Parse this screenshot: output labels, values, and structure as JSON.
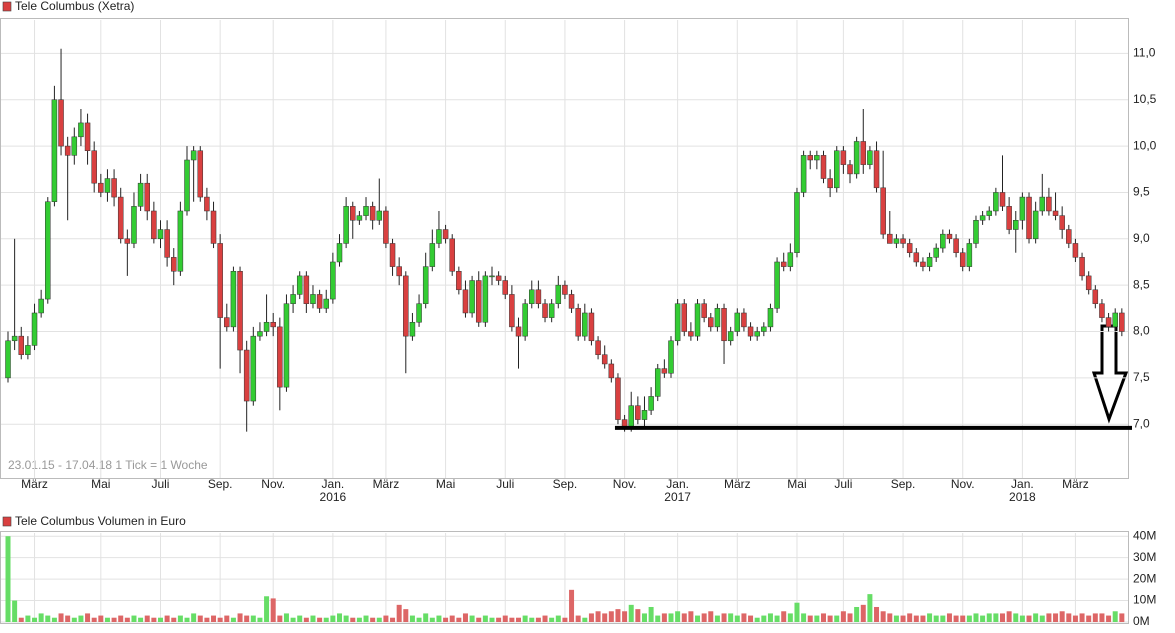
{
  "chart_data": {
    "type": "candlestick",
    "title": "Tele Columbus (Xetra)",
    "title_color": "#d94040",
    "note": "23.01.15 - 17.04.18   1 Tick = 1 Woche",
    "categories": [
      null,
      null,
      null,
      null,
      "März",
      null,
      null,
      null,
      null,
      null,
      null,
      null,
      null,
      null,
      "Mai",
      null,
      null,
      null,
      null,
      null,
      null,
      null,
      null,
      "Juli",
      null,
      null,
      null,
      null,
      null,
      null,
      null,
      null,
      "Sep.",
      null,
      null,
      null,
      null,
      null,
      null,
      null,
      "Nov.",
      null,
      null,
      null,
      null,
      null,
      null,
      null,
      null,
      "Jan.",
      null,
      null,
      null,
      null,
      null,
      null,
      null,
      "März",
      null,
      null,
      null,
      null,
      null,
      null,
      null,
      null,
      "Mai",
      null,
      null,
      null,
      null,
      null,
      null,
      null,
      null,
      "Juli",
      null,
      null,
      null,
      null,
      null,
      null,
      null,
      null,
      "Sep.",
      null,
      null,
      null,
      null,
      null,
      null,
      null,
      null,
      "Nov.",
      null,
      null,
      null,
      null,
      null,
      null,
      null,
      "Jan.",
      null,
      null,
      null,
      null,
      null,
      null,
      null,
      null,
      "März",
      null,
      null,
      null,
      null,
      null,
      null,
      null,
      null,
      "Mai",
      null,
      null,
      null,
      null,
      null,
      null,
      "Juli",
      null,
      null,
      null,
      null,
      null,
      null,
      null,
      null,
      "Sep.",
      null,
      null,
      null,
      null,
      null,
      null,
      null,
      null,
      "Nov.",
      null,
      null,
      null,
      null,
      null,
      null,
      null,
      null,
      "Jan.",
      null,
      null,
      null,
      null,
      null,
      null,
      null,
      "März",
      null,
      null,
      null,
      null,
      null,
      null,
      null
    ],
    "category_years": [
      null,
      null,
      null,
      null,
      null,
      null,
      null,
      null,
      null,
      null,
      null,
      null,
      null,
      null,
      null,
      null,
      null,
      null,
      null,
      null,
      null,
      null,
      null,
      null,
      null,
      null,
      null,
      null,
      null,
      null,
      null,
      null,
      null,
      null,
      null,
      null,
      null,
      null,
      null,
      null,
      null,
      null,
      null,
      null,
      null,
      null,
      null,
      null,
      null,
      "2016",
      null,
      null,
      null,
      null,
      null,
      null,
      null,
      null,
      null,
      null,
      null,
      null,
      null,
      null,
      null,
      null,
      null,
      null,
      null,
      null,
      null,
      null,
      null,
      null,
      null,
      null,
      null,
      null,
      null,
      null,
      null,
      null,
      null,
      null,
      null,
      null,
      null,
      null,
      null,
      null,
      null,
      null,
      null,
      null,
      null,
      null,
      null,
      null,
      null,
      null,
      null,
      "2017",
      null,
      null,
      null,
      null,
      null,
      null,
      null,
      null,
      null,
      null,
      null,
      null,
      null,
      null,
      null,
      null,
      null,
      null,
      null,
      null,
      null,
      null,
      null,
      null,
      null,
      null,
      null,
      null,
      null,
      null,
      null,
      null,
      null,
      null,
      null,
      null,
      null,
      null,
      null,
      null,
      null,
      null,
      null,
      null,
      null,
      null,
      null,
      null,
      null,
      null,
      null,
      "2018",
      null,
      null,
      null,
      null,
      null,
      null,
      null,
      null,
      null,
      null,
      null,
      null,
      null,
      null,
      null
    ],
    "open": [
      7.5,
      7.9,
      7.95,
      7.75,
      7.85,
      8.2,
      8.35,
      9.4,
      10.5,
      10.0,
      9.9,
      10.1,
      10.25,
      9.95,
      9.6,
      9.5,
      9.65,
      9.45,
      9.0,
      8.95,
      9.35,
      9.6,
      9.3,
      9.0,
      9.1,
      8.8,
      8.65,
      9.3,
      9.85,
      9.95,
      9.45,
      9.3,
      8.95,
      8.15,
      8.05,
      8.65,
      7.8,
      7.25,
      7.95,
      8.0,
      8.1,
      8.05,
      7.4,
      8.3,
      8.4,
      8.6,
      8.3,
      8.4,
      8.25,
      8.35,
      8.75,
      8.95,
      9.35,
      9.2,
      9.25,
      9.35,
      9.2,
      9.3,
      8.95,
      8.7,
      8.6,
      7.95,
      8.1,
      8.3,
      8.7,
      8.95,
      9.1,
      9.0,
      8.65,
      8.45,
      8.2,
      8.55,
      8.1,
      8.6,
      8.6,
      8.55,
      8.4,
      8.05,
      7.95,
      8.3,
      8.45,
      8.3,
      8.15,
      8.3,
      8.5,
      8.4,
      8.25,
      7.95,
      8.2,
      7.9,
      7.75,
      7.65,
      7.5,
      7.05,
      6.95,
      7.2,
      7.05,
      7.15,
      7.3,
      7.6,
      7.55,
      7.9,
      8.3,
      8.0,
      7.95,
      8.3,
      8.15,
      8.05,
      8.25,
      7.9,
      8.0,
      8.2,
      8.05,
      7.95,
      8.0,
      8.05,
      8.25,
      8.75,
      8.7,
      8.85,
      9.5,
      9.9,
      9.85,
      9.9,
      9.65,
      9.55,
      9.95,
      9.8,
      9.7,
      10.05,
      9.8,
      9.95,
      9.55,
      9.05,
      8.95,
      9.0,
      8.95,
      8.85,
      8.75,
      8.7,
      8.8,
      8.9,
      9.05,
      9.0,
      8.85,
      8.7,
      8.95,
      9.2,
      9.25,
      9.3,
      9.5,
      9.35,
      9.1,
      9.2,
      9.45,
      9.0,
      9.3,
      9.45,
      9.3,
      9.25,
      9.1,
      8.95,
      8.8,
      8.6,
      8.45,
      8.3,
      8.15,
      8.05,
      8.2
    ],
    "high": [
      8.0,
      9.0,
      8.05,
      7.95,
      8.3,
      8.45,
      9.45,
      10.65,
      11.05,
      10.1,
      10.2,
      10.4,
      10.35,
      10.05,
      9.7,
      9.75,
      9.75,
      9.55,
      9.1,
      9.5,
      9.7,
      9.7,
      9.4,
      9.2,
      9.2,
      8.9,
      9.4,
      10.0,
      10.0,
      10.0,
      9.55,
      9.4,
      9.05,
      8.3,
      8.7,
      8.7,
      7.9,
      8.05,
      8.1,
      8.4,
      8.2,
      8.15,
      8.4,
      8.5,
      8.65,
      8.65,
      8.5,
      8.45,
      8.45,
      8.85,
      9.05,
      9.45,
      9.4,
      9.3,
      9.45,
      9.4,
      9.65,
      9.35,
      9.0,
      8.8,
      8.65,
      8.2,
      8.4,
      8.85,
      9.1,
      9.3,
      9.15,
      9.05,
      8.7,
      8.55,
      8.6,
      8.65,
      8.65,
      8.7,
      8.65,
      8.6,
      8.5,
      8.15,
      8.35,
      8.55,
      8.55,
      8.35,
      8.35,
      8.6,
      8.55,
      8.45,
      8.3,
      8.3,
      8.25,
      7.95,
      7.85,
      7.7,
      7.55,
      7.1,
      7.35,
      7.3,
      7.3,
      7.4,
      7.65,
      7.7,
      7.95,
      8.35,
      8.35,
      8.1,
      8.35,
      8.35,
      8.2,
      8.3,
      8.3,
      8.05,
      8.25,
      8.25,
      8.1,
      8.05,
      8.1,
      8.3,
      8.8,
      8.85,
      8.95,
      9.55,
      9.95,
      9.95,
      9.95,
      9.95,
      9.75,
      10.0,
      10.0,
      9.85,
      10.1,
      10.4,
      10.0,
      10.05,
      9.95,
      9.3,
      9.05,
      9.05,
      9.0,
      8.9,
      8.8,
      8.85,
      8.95,
      9.1,
      9.1,
      9.05,
      8.9,
      9.0,
      9.25,
      9.3,
      9.35,
      9.55,
      9.9,
      9.45,
      9.3,
      9.5,
      9.5,
      9.4,
      9.7,
      9.55,
      9.5,
      9.35,
      9.15,
      9.0,
      8.85,
      8.65,
      8.5,
      8.35,
      8.2,
      8.25,
      8.25
    ],
    "low": [
      7.45,
      7.8,
      7.7,
      7.7,
      7.8,
      8.15,
      8.3,
      9.35,
      9.9,
      9.2,
      9.8,
      10.0,
      9.8,
      9.5,
      9.45,
      9.4,
      9.35,
      8.95,
      8.6,
      8.9,
      9.3,
      9.2,
      8.95,
      8.9,
      8.7,
      8.5,
      8.6,
      9.25,
      9.4,
      9.4,
      9.2,
      8.9,
      7.6,
      8.0,
      8.0,
      7.55,
      6.92,
      7.2,
      7.9,
      7.95,
      7.95,
      7.15,
      7.35,
      8.2,
      8.35,
      8.2,
      8.25,
      8.2,
      8.2,
      8.3,
      8.7,
      8.9,
      9.0,
      9.15,
      9.2,
      9.1,
      9.15,
      8.9,
      8.6,
      8.5,
      7.55,
      7.9,
      8.05,
      8.25,
      8.65,
      8.9,
      8.95,
      8.6,
      8.4,
      8.15,
      8.15,
      8.05,
      8.05,
      8.5,
      8.5,
      8.35,
      8.0,
      7.6,
      7.9,
      8.25,
      8.25,
      8.1,
      8.1,
      8.25,
      8.35,
      8.2,
      7.9,
      7.9,
      7.85,
      7.7,
      7.6,
      7.45,
      7.0,
      6.92,
      6.92,
      7.0,
      6.98,
      7.1,
      7.25,
      7.5,
      7.5,
      7.85,
      7.95,
      7.9,
      7.9,
      8.1,
      8.0,
      8.0,
      7.65,
      7.85,
      7.95,
      8.0,
      7.9,
      7.9,
      7.95,
      8.0,
      8.2,
      8.65,
      8.65,
      8.8,
      9.45,
      9.75,
      9.75,
      9.6,
      9.45,
      9.5,
      9.7,
      9.6,
      9.65,
      9.7,
      9.75,
      9.5,
      9.0,
      8.95,
      8.9,
      8.9,
      8.8,
      8.7,
      8.65,
      8.65,
      8.75,
      8.85,
      8.95,
      8.8,
      8.65,
      8.65,
      8.9,
      9.15,
      9.2,
      9.25,
      9.3,
      9.05,
      8.85,
      9.1,
      8.95,
      8.95,
      9.25,
      9.25,
      9.2,
      9.0,
      8.9,
      8.75,
      8.55,
      8.4,
      8.25,
      8.1,
      8.0,
      8.0,
      7.95
    ],
    "close": [
      7.9,
      7.95,
      7.75,
      7.85,
      8.2,
      8.35,
      9.4,
      10.5,
      10.0,
      9.9,
      10.1,
      10.25,
      9.95,
      9.6,
      9.5,
      9.65,
      9.45,
      9.0,
      8.95,
      9.35,
      9.6,
      9.3,
      9.0,
      9.1,
      8.8,
      8.65,
      9.3,
      9.85,
      9.95,
      9.45,
      9.3,
      8.95,
      8.15,
      8.05,
      8.65,
      7.8,
      7.25,
      7.95,
      8.0,
      8.1,
      8.05,
      7.4,
      8.3,
      8.4,
      8.6,
      8.3,
      8.4,
      8.25,
      8.35,
      8.75,
      8.95,
      9.35,
      9.2,
      9.25,
      9.35,
      9.2,
      9.3,
      8.95,
      8.7,
      8.6,
      7.95,
      8.1,
      8.3,
      8.7,
      8.95,
      9.1,
      9.0,
      8.65,
      8.45,
      8.2,
      8.55,
      8.1,
      8.6,
      8.6,
      8.55,
      8.4,
      8.05,
      7.95,
      8.3,
      8.45,
      8.3,
      8.15,
      8.3,
      8.5,
      8.4,
      8.25,
      7.95,
      8.2,
      7.9,
      7.75,
      7.65,
      7.5,
      7.05,
      6.95,
      7.2,
      7.05,
      7.15,
      7.3,
      7.6,
      7.55,
      7.9,
      8.3,
      8.0,
      7.95,
      8.3,
      8.15,
      8.05,
      8.25,
      7.9,
      8.0,
      8.2,
      8.05,
      7.95,
      8.0,
      8.05,
      8.25,
      8.75,
      8.7,
      8.85,
      9.5,
      9.9,
      9.85,
      9.9,
      9.65,
      9.55,
      9.95,
      9.8,
      9.7,
      10.05,
      9.8,
      9.95,
      9.55,
      9.05,
      8.95,
      9.0,
      8.95,
      8.85,
      8.75,
      8.7,
      8.8,
      8.9,
      9.05,
      9.0,
      8.85,
      8.7,
      8.95,
      9.2,
      9.25,
      9.3,
      9.5,
      9.35,
      9.1,
      9.2,
      9.45,
      9.0,
      9.3,
      9.45,
      9.3,
      9.25,
      9.1,
      8.95,
      8.8,
      8.6,
      8.45,
      8.3,
      8.15,
      8.05,
      8.2,
      8.0
    ],
    "up_color": "#33cc33",
    "down_color": "#d94040",
    "ylim": [
      6.42,
      11.36
    ],
    "yticks": [
      {
        "value": 7,
        "label": "7,0"
      },
      {
        "value": 7.5,
        "label": "7,5"
      },
      {
        "value": 8,
        "label": "8,0"
      },
      {
        "value": 8.5,
        "label": "8,5"
      },
      {
        "value": 9,
        "label": "9,0"
      },
      {
        "value": 9.5,
        "label": "9,5"
      },
      {
        "value": 10,
        "label": "10,0"
      },
      {
        "value": 10.5,
        "label": "10,5"
      },
      {
        "value": 11,
        "label": "11,0"
      }
    ],
    "grid": true,
    "hline": 6.96,
    "volume": {
      "title": "Tele Columbus Volumen in Euro",
      "up_color": "#66dd66",
      "down_color": "#dd6666",
      "values": [
        40,
        10,
        2,
        3,
        2,
        4,
        3,
        2,
        4,
        3,
        2,
        3,
        4,
        2,
        3,
        2,
        2,
        3,
        2,
        3,
        2,
        3,
        2,
        2,
        3,
        2,
        3,
        2,
        4,
        3,
        2,
        3,
        2,
        3,
        2,
        4,
        3,
        3,
        2,
        12,
        11,
        3,
        4,
        2,
        3,
        2,
        3,
        2,
        2,
        3,
        4,
        3,
        2,
        2,
        3,
        2,
        2,
        3,
        2,
        8,
        6,
        3,
        2,
        4,
        2,
        3,
        2,
        3,
        2,
        4,
        3,
        2,
        3,
        2,
        2,
        3,
        2,
        2,
        3,
        2,
        2,
        3,
        2,
        3,
        2,
        15,
        3,
        2,
        4,
        5,
        4,
        5,
        6,
        5,
        8,
        6,
        4,
        7,
        3,
        4,
        4,
        5,
        4,
        5,
        3,
        4,
        5,
        3,
        4,
        4,
        3,
        4,
        3,
        2,
        3,
        4,
        3,
        5,
        4,
        9,
        4,
        3,
        3,
        4,
        3,
        3,
        5,
        4,
        7,
        8,
        13,
        7,
        5,
        4,
        3,
        3,
        4,
        3,
        3,
        4,
        3,
        3,
        4,
        3,
        3,
        3,
        4,
        3,
        4,
        4,
        4,
        5,
        4,
        3,
        3,
        4,
        3,
        4,
        4,
        5,
        4,
        3,
        4,
        3,
        4,
        4,
        3,
        5,
        4
      ],
      "ylim": [
        0,
        41.5
      ],
      "yticks": [
        {
          "value": 0,
          "label": "0M"
        },
        {
          "value": 10,
          "label": "10M"
        },
        {
          "value": 20,
          "label": "20M"
        },
        {
          "value": 30,
          "label": "30M"
        },
        {
          "value": 40,
          "label": "40M"
        }
      ]
    }
  }
}
